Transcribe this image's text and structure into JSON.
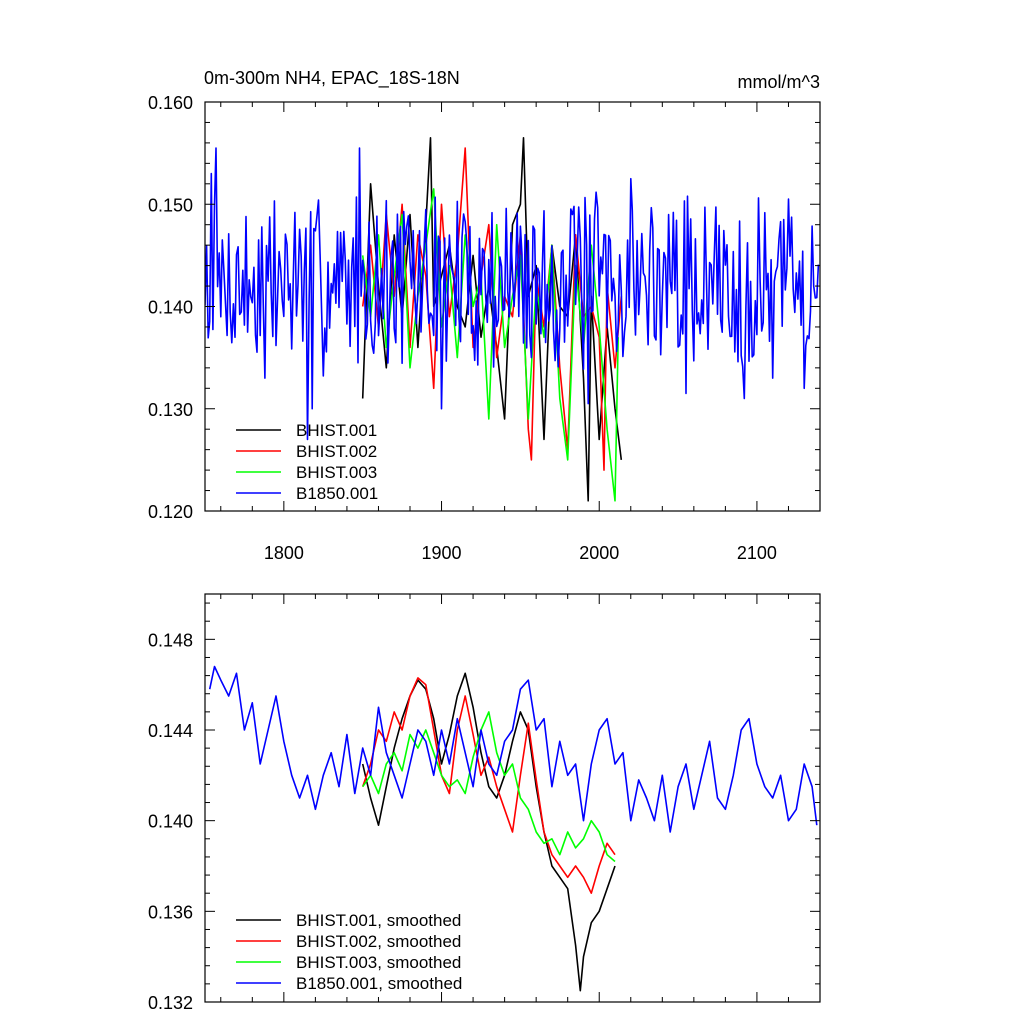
{
  "chart_data": [
    {
      "type": "line",
      "title": "0m-300m NH4, EPAC_18S-18N",
      "units": "mmol/m^3",
      "xlim": [
        1750,
        2140
      ],
      "ylim": [
        0.12,
        0.16
      ],
      "x_ticks": [
        1800,
        1900,
        2000,
        2100
      ],
      "x_tick_labels": [
        "1800",
        "1900",
        "2000",
        "2100"
      ],
      "y_ticks": [
        0.12,
        0.13,
        0.14,
        0.15,
        0.16
      ],
      "y_tick_labels": [
        "0.120",
        "0.130",
        "0.140",
        "0.150",
        "0.160"
      ],
      "legend_position": "bottom-left",
      "series": [
        {
          "name": "BHIST.001",
          "color": "#000000",
          "x": [
            1850,
            1855,
            1860,
            1865,
            1870,
            1875,
            1880,
            1885,
            1890,
            1893,
            1895,
            1900,
            1905,
            1910,
            1915,
            1920,
            1925,
            1930,
            1935,
            1940,
            1945,
            1950,
            1952,
            1955,
            1960,
            1965,
            1970,
            1975,
            1980,
            1985,
            1990,
            1993,
            1995,
            2000,
            2005,
            2010,
            2014
          ],
          "y": [
            0.131,
            0.152,
            0.142,
            0.134,
            0.147,
            0.139,
            0.149,
            0.136,
            0.148,
            0.1565,
            0.14,
            0.143,
            0.146,
            0.14,
            0.138,
            0.145,
            0.137,
            0.142,
            0.136,
            0.129,
            0.148,
            0.15,
            0.1565,
            0.141,
            0.144,
            0.127,
            0.146,
            0.14,
            0.139,
            0.147,
            0.133,
            0.121,
            0.141,
            0.127,
            0.138,
            0.13,
            0.125
          ]
        },
        {
          "name": "BHIST.002",
          "color": "#ff0000",
          "x": [
            1850,
            1855,
            1860,
            1865,
            1870,
            1875,
            1880,
            1885,
            1890,
            1895,
            1900,
            1905,
            1910,
            1915,
            1920,
            1925,
            1930,
            1935,
            1940,
            1945,
            1950,
            1955,
            1957,
            1960,
            1965,
            1970,
            1975,
            1980,
            1985,
            1990,
            1995,
            2000,
            2003,
            2005,
            2010,
            2014
          ],
          "y": [
            0.14,
            0.146,
            0.138,
            0.149,
            0.141,
            0.15,
            0.136,
            0.147,
            0.143,
            0.132,
            0.15,
            0.139,
            0.145,
            0.1555,
            0.136,
            0.143,
            0.148,
            0.135,
            0.141,
            0.139,
            0.147,
            0.128,
            0.125,
            0.143,
            0.138,
            0.146,
            0.134,
            0.126,
            0.147,
            0.139,
            0.14,
            0.137,
            0.124,
            0.142,
            0.134,
            0.141
          ]
        },
        {
          "name": "BHIST.003",
          "color": "#00ff00",
          "x": [
            1850,
            1855,
            1860,
            1865,
            1870,
            1875,
            1880,
            1885,
            1890,
            1895,
            1900,
            1905,
            1910,
            1915,
            1920,
            1925,
            1930,
            1935,
            1940,
            1945,
            1950,
            1955,
            1960,
            1965,
            1970,
            1975,
            1980,
            1985,
            1990,
            1995,
            2000,
            2005,
            2010,
            2012
          ],
          "y": [
            0.145,
            0.139,
            0.147,
            0.136,
            0.143,
            0.149,
            0.134,
            0.141,
            0.146,
            0.1515,
            0.138,
            0.144,
            0.135,
            0.147,
            0.14,
            0.143,
            0.129,
            0.148,
            0.136,
            0.141,
            0.145,
            0.129,
            0.142,
            0.137,
            0.146,
            0.131,
            0.125,
            0.144,
            0.136,
            0.146,
            0.138,
            0.128,
            0.121,
            0.137
          ]
        }
      ],
      "legend_entries": [
        "BHIST.001",
        "BHIST.002",
        "BHIST.003",
        "B1850.001"
      ],
      "blue_series": {
        "name": "B1850.001",
        "color": "#0000ff",
        "x_start": 1750,
        "x_end": 2139,
        "seed": 7,
        "extremes": [
          [
            1754,
            0.153
          ],
          [
            1757,
            0.1555
          ],
          [
            1760,
            0.139
          ],
          [
            1777,
            0.1375
          ],
          [
            1788,
            0.133
          ],
          [
            1815,
            0.127
          ],
          [
            1818,
            0.13
          ],
          [
            1848,
            0.1555
          ],
          [
            1900,
            0.13
          ],
          [
            1957,
            0.135
          ],
          [
            1983,
            0.149
          ],
          [
            1993,
            0.1305
          ],
          [
            2017,
            0.139
          ],
          [
            2020,
            0.1525
          ],
          [
            2055,
            0.1315
          ],
          [
            2092,
            0.131
          ],
          [
            2110,
            0.133
          ],
          [
            2120,
            0.1505
          ],
          [
            2130,
            0.132
          ],
          [
            2136,
            0.142
          ]
        ]
      }
    },
    {
      "type": "line",
      "title": "",
      "xlim": [
        1750,
        2140
      ],
      "ylim": [
        0.132,
        0.15
      ],
      "x_ticks": [
        1800,
        1900,
        2000,
        2100
      ],
      "y_ticks": [
        0.132,
        0.136,
        0.14,
        0.144,
        0.148
      ],
      "y_tick_labels": [
        "0.132",
        "0.136",
        "0.140",
        "0.144",
        "0.148"
      ],
      "legend_position": "bottom-left",
      "series": [
        {
          "name": "BHIST.001, smoothed",
          "color": "#000000",
          "x": [
            1850,
            1855,
            1860,
            1865,
            1870,
            1875,
            1880,
            1885,
            1890,
            1895,
            1900,
            1905,
            1910,
            1915,
            1920,
            1925,
            1930,
            1935,
            1940,
            1945,
            1950,
            1955,
            1960,
            1965,
            1970,
            1975,
            1980,
            1985,
            1988,
            1990,
            1995,
            2000,
            2005,
            2010
          ],
          "y": [
            0.1425,
            0.141,
            0.1398,
            0.1415,
            0.1432,
            0.1445,
            0.1455,
            0.1462,
            0.1458,
            0.1445,
            0.1425,
            0.1438,
            0.1455,
            0.1465,
            0.145,
            0.143,
            0.1415,
            0.141,
            0.142,
            0.1435,
            0.1448,
            0.144,
            0.1415,
            0.1395,
            0.138,
            0.1375,
            0.137,
            0.1345,
            0.1325,
            0.134,
            0.1355,
            0.136,
            0.137,
            0.138
          ]
        },
        {
          "name": "BHIST.002, smoothed",
          "color": "#ff0000",
          "x": [
            1850,
            1855,
            1860,
            1865,
            1870,
            1875,
            1880,
            1885,
            1890,
            1895,
            1900,
            1905,
            1910,
            1915,
            1920,
            1925,
            1930,
            1935,
            1940,
            1945,
            1950,
            1955,
            1960,
            1965,
            1970,
            1975,
            1980,
            1985,
            1990,
            1995,
            2000,
            2005,
            2010
          ],
          "y": [
            0.1415,
            0.1425,
            0.144,
            0.1435,
            0.1448,
            0.144,
            0.1455,
            0.1463,
            0.146,
            0.144,
            0.142,
            0.1412,
            0.144,
            0.1455,
            0.1438,
            0.142,
            0.1428,
            0.1415,
            0.1405,
            0.1395,
            0.142,
            0.1443,
            0.1418,
            0.1395,
            0.1385,
            0.138,
            0.1375,
            0.138,
            0.1375,
            0.1368,
            0.138,
            0.139,
            0.1385
          ]
        },
        {
          "name": "BHIST.003, smoothed",
          "color": "#00ff00",
          "x": [
            1850,
            1855,
            1860,
            1865,
            1870,
            1875,
            1880,
            1885,
            1890,
            1895,
            1900,
            1905,
            1910,
            1915,
            1920,
            1925,
            1930,
            1935,
            1940,
            1945,
            1950,
            1955,
            1960,
            1965,
            1970,
            1975,
            1980,
            1985,
            1990,
            1995,
            2000,
            2005,
            2010
          ],
          "y": [
            0.1415,
            0.142,
            0.1412,
            0.1425,
            0.143,
            0.1422,
            0.1438,
            0.1432,
            0.144,
            0.143,
            0.142,
            0.1415,
            0.1418,
            0.1412,
            0.1428,
            0.144,
            0.1448,
            0.143,
            0.142,
            0.1425,
            0.141,
            0.1405,
            0.1395,
            0.139,
            0.1392,
            0.1385,
            0.1395,
            0.1388,
            0.1392,
            0.14,
            0.1395,
            0.1385,
            0.1382
          ]
        },
        {
          "name": "B1850.001, smoothed",
          "color": "#0000ff",
          "x": [
            1753,
            1756,
            1760,
            1765,
            1770,
            1775,
            1780,
            1785,
            1790,
            1795,
            1800,
            1805,
            1810,
            1815,
            1820,
            1825,
            1830,
            1835,
            1840,
            1845,
            1850,
            1855,
            1860,
            1865,
            1870,
            1875,
            1880,
            1885,
            1890,
            1895,
            1900,
            1905,
            1910,
            1915,
            1920,
            1925,
            1930,
            1935,
            1940,
            1945,
            1950,
            1955,
            1960,
            1965,
            1970,
            1975,
            1980,
            1985,
            1990,
            1995,
            2000,
            2005,
            2010,
            2015,
            2020,
            2025,
            2030,
            2035,
            2040,
            2045,
            2050,
            2055,
            2060,
            2065,
            2070,
            2075,
            2080,
            2085,
            2090,
            2095,
            2100,
            2105,
            2110,
            2115,
            2120,
            2125,
            2130,
            2135,
            2138
          ],
          "y": [
            0.1458,
            0.1468,
            0.1462,
            0.1455,
            0.1465,
            0.144,
            0.1452,
            0.1425,
            0.144,
            0.1455,
            0.1435,
            0.142,
            0.141,
            0.142,
            0.1405,
            0.142,
            0.143,
            0.1415,
            0.1438,
            0.1412,
            0.1432,
            0.142,
            0.145,
            0.143,
            0.142,
            0.141,
            0.1425,
            0.144,
            0.1435,
            0.142,
            0.144,
            0.1425,
            0.1445,
            0.143,
            0.1415,
            0.144,
            0.1425,
            0.142,
            0.1435,
            0.144,
            0.1458,
            0.1462,
            0.144,
            0.1445,
            0.1415,
            0.1435,
            0.142,
            0.1425,
            0.14,
            0.1425,
            0.144,
            0.1445,
            0.1425,
            0.143,
            0.14,
            0.1418,
            0.141,
            0.14,
            0.142,
            0.1395,
            0.1415,
            0.1425,
            0.1405,
            0.142,
            0.1435,
            0.141,
            0.1405,
            0.142,
            0.144,
            0.1445,
            0.1425,
            0.1415,
            0.141,
            0.142,
            0.14,
            0.1405,
            0.1425,
            0.1415,
            0.1398
          ]
        }
      ]
    }
  ]
}
